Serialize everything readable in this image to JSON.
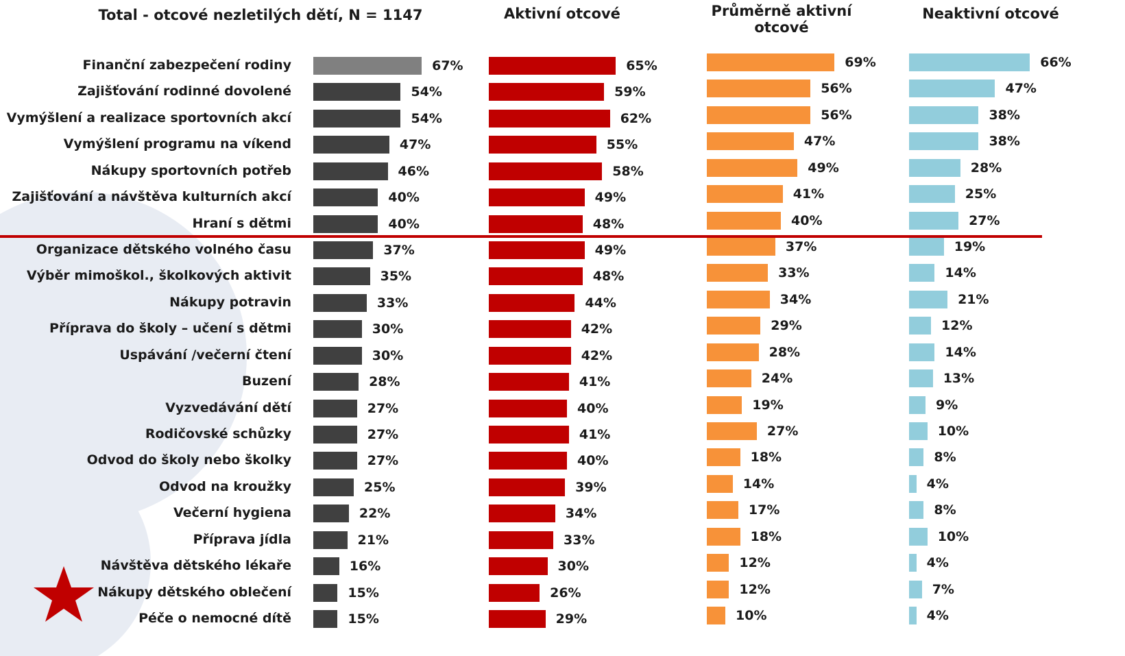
{
  "chart_data": {
    "type": "bar",
    "orientation": "horizontal",
    "categories": [
      "Finanční zabezpečení rodiny",
      "Zajišťování rodinné dovolené",
      "Vymýšlení a realizace sportovních akcí",
      "Vymýšlení programu na víkend",
      "Nákupy sportovních potřeb",
      "Zajišťování a návštěva kulturních akcí",
      "Hraní s dětmi",
      "Organizace dětského volného času",
      "Výběr mimoškol., školkových aktivit",
      "Nákupy potravin",
      "Příprava do školy – učení s dětmi",
      "Uspávání /večerní čtení",
      "Buzení",
      "Vyzvedávání dětí",
      "Rodičovské schůzky",
      "Odvod do školy nebo školky",
      "Odvod na kroužky",
      "Večerní hygiena",
      "Příprava jídla",
      "Návštěva dětského lékaře",
      "Nákupy dětského oblečení",
      "Péče o nemocné dítě"
    ],
    "series": [
      {
        "name": "Total - otcové nezletilých dětí, N = 1147",
        "color": "#404040",
        "colors": [
          "#808080",
          "#404040",
          "#404040",
          "#404040",
          "#404040",
          "#404040",
          "#404040",
          "#404040",
          "#404040",
          "#404040",
          "#404040",
          "#404040",
          "#404040",
          "#404040",
          "#404040",
          "#404040",
          "#404040",
          "#404040",
          "#404040",
          "#404040",
          "#404040",
          "#404040"
        ],
        "values": [
          67,
          54,
          54,
          47,
          46,
          40,
          40,
          37,
          35,
          33,
          30,
          30,
          28,
          27,
          27,
          27,
          25,
          22,
          21,
          16,
          15,
          15
        ],
        "value_labels": [
          "67%",
          "54%",
          "54%",
          "47%",
          "46%",
          "40%",
          "40%",
          "37%",
          "35%",
          "33%",
          "30%",
          "30%",
          "28%",
          "27%",
          "27%",
          "27%",
          "25%",
          "22%",
          "21%",
          "16%",
          "15%",
          "15%"
        ]
      },
      {
        "name": "Aktivní otcové",
        "color": "#c00000",
        "values": [
          65,
          59,
          62,
          55,
          58,
          49,
          48,
          49,
          48,
          44,
          42,
          42,
          41,
          40,
          41,
          40,
          39,
          34,
          33,
          30,
          26,
          29
        ],
        "value_labels": [
          "65%",
          "59%",
          "62%",
          "55%",
          "58%",
          "49%",
          "48%",
          "49%",
          "48%",
          "44%",
          "42%",
          "42%",
          "41%",
          "40%",
          "41%",
          "40%",
          "39%",
          "34%",
          "33%",
          "30%",
          "26%",
          "29%"
        ]
      },
      {
        "name": "Průměrně aktivní otcové",
        "color": "#f79239",
        "values": [
          69,
          56,
          56,
          47,
          49,
          41,
          40,
          37,
          33,
          34,
          29,
          28,
          24,
          19,
          27,
          18,
          14,
          17,
          18,
          12,
          12,
          10
        ],
        "value_labels": [
          "69%",
          "56%",
          "56%",
          "47%",
          "49%",
          "41%",
          "40%",
          "37%",
          "33%",
          "34%",
          "29%",
          "28%",
          "24%",
          "19%",
          "27%",
          "18%",
          "14%",
          "17%",
          "18%",
          "12%",
          "12%",
          "10%"
        ]
      },
      {
        "name": "Neaktivní otcové",
        "color": "#92cddc",
        "values": [
          66,
          47,
          38,
          38,
          28,
          25,
          27,
          19,
          14,
          21,
          12,
          14,
          13,
          9,
          10,
          8,
          4,
          8,
          10,
          4,
          7,
          4
        ],
        "value_labels": [
          "66%",
          "47%",
          "38%",
          "38%",
          "28%",
          "25%",
          "27%",
          "19%",
          "14%",
          "21%",
          "12%",
          "14%",
          "13%",
          "9%",
          "10%",
          "8%",
          "4%",
          "8%",
          "10%",
          "4%",
          "7%",
          "4%"
        ]
      }
    ]
  }
}
